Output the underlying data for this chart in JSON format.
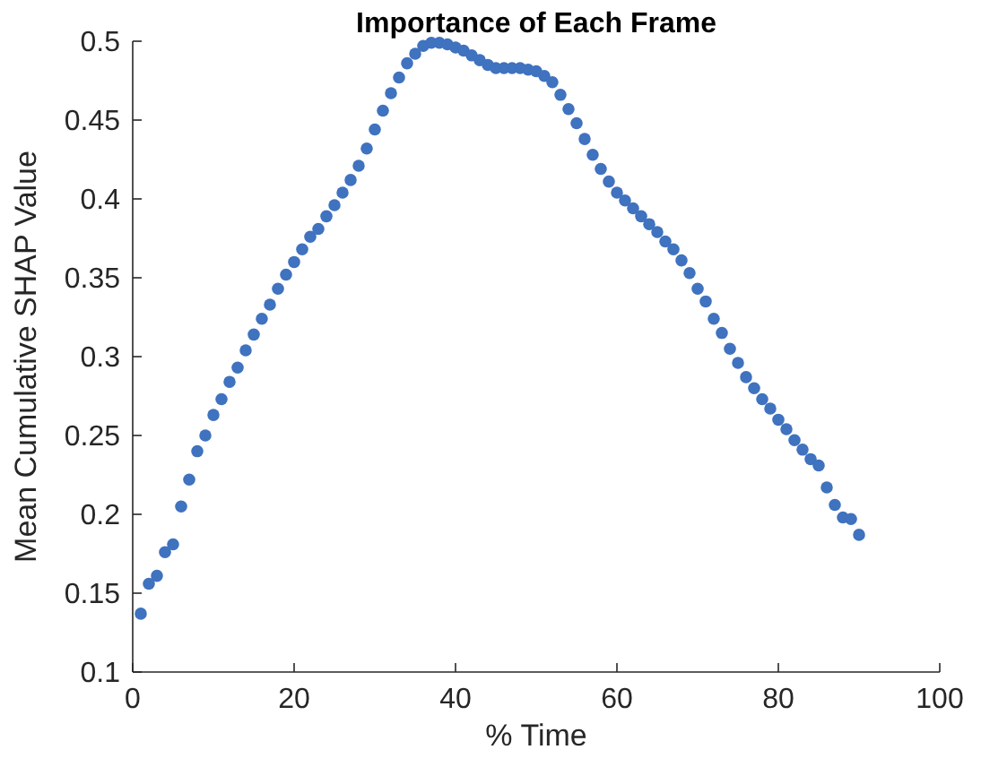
{
  "chart_data": {
    "type": "scatter",
    "title": "Importance of Each Frame",
    "xlabel": "% Time",
    "ylabel": "Mean Cumulative SHAP Value",
    "x": [
      1,
      2,
      3,
      4,
      5,
      6,
      7,
      8,
      9,
      10,
      11,
      12,
      13,
      14,
      15,
      16,
      17,
      18,
      19,
      20,
      21,
      22,
      23,
      24,
      25,
      26,
      27,
      28,
      29,
      30,
      31,
      32,
      33,
      34,
      35,
      36,
      37,
      38,
      39,
      40,
      41,
      42,
      43,
      44,
      45,
      46,
      47,
      48,
      49,
      50,
      51,
      52,
      53,
      54,
      55,
      56,
      57,
      58,
      59,
      60,
      61,
      62,
      63,
      64,
      65,
      66,
      67,
      68,
      69,
      70,
      71,
      72,
      73,
      74,
      75,
      76,
      77,
      78,
      79,
      80,
      81,
      82,
      83,
      84,
      85,
      86,
      87,
      88,
      89,
      90
    ],
    "series": [
      {
        "color": "#3f72bf",
        "values": [
          0.137,
          0.156,
          0.161,
          0.176,
          0.181,
          0.205,
          0.222,
          0.24,
          0.25,
          0.263,
          0.273,
          0.284,
          0.293,
          0.304,
          0.314,
          0.324,
          0.333,
          0.343,
          0.352,
          0.36,
          0.368,
          0.376,
          0.381,
          0.389,
          0.396,
          0.404,
          0.412,
          0.421,
          0.432,
          0.444,
          0.456,
          0.467,
          0.477,
          0.486,
          0.492,
          0.497,
          0.499,
          0.499,
          0.498,
          0.496,
          0.494,
          0.491,
          0.488,
          0.485,
          0.483,
          0.483,
          0.483,
          0.483,
          0.482,
          0.481,
          0.478,
          0.474,
          0.466,
          0.457,
          0.448,
          0.438,
          0.428,
          0.419,
          0.411,
          0.404,
          0.399,
          0.394,
          0.389,
          0.384,
          0.379,
          0.373,
          0.368,
          0.361,
          0.353,
          0.343,
          0.335,
          0.324,
          0.315,
          0.305,
          0.296,
          0.287,
          0.28,
          0.273,
          0.267,
          0.26,
          0.254,
          0.247,
          0.241,
          0.235,
          0.231,
          0.217,
          0.206,
          0.198,
          0.197,
          0.187
        ]
      }
    ],
    "xlim": [
      0,
      100
    ],
    "xticks": [
      0,
      20,
      40,
      60,
      80,
      100
    ],
    "ylim": [
      0.1,
      0.5
    ],
    "yticks": [
      0.1,
      0.15,
      0.2,
      0.25,
      0.3,
      0.35,
      0.4,
      0.45,
      0.5
    ],
    "marker": "circle",
    "grid": false
  }
}
